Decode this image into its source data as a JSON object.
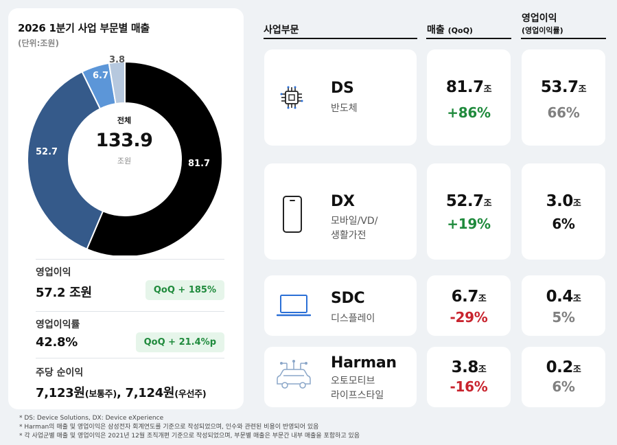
{
  "left": {
    "title": "2026 1분기 사업 부문별 매출",
    "unit": "(단위:조원)",
    "donut": {
      "center_label": "전체",
      "center_value": "133.9",
      "center_unit": "조원",
      "slices": [
        {
          "label": "81.7",
          "value": 81.7,
          "color": "#000000"
        },
        {
          "label": "52.7",
          "value": 52.7,
          "color": "#355a8a"
        },
        {
          "label": "6.7",
          "value": 6.7,
          "color": "#5c96d8"
        },
        {
          "label": "3.8",
          "value": 3.8,
          "color": "#b6c8de"
        }
      ]
    },
    "metrics": [
      {
        "label": "영업이익",
        "value": "57.2 조원",
        "badge": "QoQ  + 185%"
      },
      {
        "label": "영업이익률",
        "value": "42.8%",
        "badge": "QoQ  + 21.4%p"
      },
      {
        "label": "주당 순이익",
        "value_a": "7,123원",
        "unit_a": "(보통주)",
        "sep": ", ",
        "value_b": "7,124원",
        "unit_b": "(우선주)"
      }
    ]
  },
  "headers": {
    "segment": "사업부문",
    "revenue": "매출",
    "revenue_sub": "(QoQ)",
    "op": "영업이익",
    "op_sub": "(영업이익률)"
  },
  "segments": [
    {
      "code": "DS",
      "desc": [
        "반도체"
      ],
      "icon": "chip-icon",
      "revenue": "81.7",
      "revenue_unit": "조",
      "qoq": "+86%",
      "qoq_color": "green",
      "op": "53.7",
      "op_unit": "조",
      "margin": "66%",
      "margin_color": "grey"
    },
    {
      "code": "DX",
      "desc": [
        "모바일/VD/",
        "생활가전"
      ],
      "icon": "smartphone-icon",
      "revenue": "52.7",
      "revenue_unit": "조",
      "qoq": "+19%",
      "qoq_color": "green",
      "op": "3.0",
      "op_unit": "조",
      "margin": "6%",
      "margin_color": "dark"
    },
    {
      "code": "SDC",
      "desc": [
        "디스플레이"
      ],
      "icon": "laptop-icon",
      "revenue": "6.7",
      "revenue_unit": "조",
      "qoq": "-29%",
      "qoq_color": "red",
      "op": "0.4",
      "op_unit": "조",
      "margin": "5%",
      "margin_color": "grey"
    },
    {
      "code": "Harman",
      "desc": [
        "오토모티브",
        "라이프스타일"
      ],
      "icon": "connected-car-icon",
      "revenue": "3.8",
      "revenue_unit": "조",
      "qoq": "-16%",
      "qoq_color": "red",
      "op": "0.2",
      "op_unit": "조",
      "margin": "6%",
      "margin_color": "grey"
    }
  ],
  "footnotes": [
    "* DS: Device Solutions, DX: Device eXperience",
    "* Harman의 매출 및 영업이익은 삼성전자 회계연도를 기준으로 작성되었으며, 인수와 관련된 비용이 반영되어 있음",
    "* 각 사업군별 매출 및 영업이익은 2021년 12월 조직개편 기준으로 작성되었으며, 부문별 매출은 부문간 내부 매출을 포함하고 있음"
  ]
}
